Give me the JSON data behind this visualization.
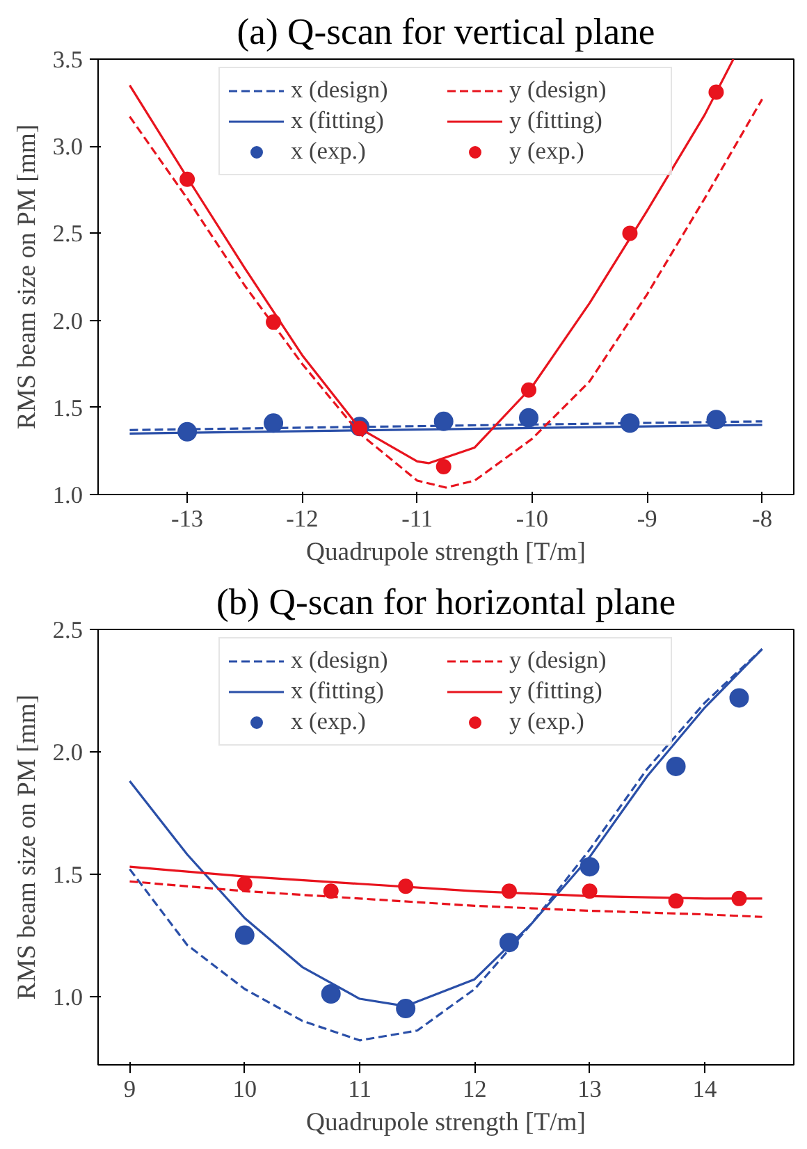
{
  "chart_data": [
    {
      "type": "line",
      "title": "(a) Q-scan for vertical plane",
      "xlabel": "Quadrupole strength [T/m]",
      "ylabel": "RMS beam size on PM [mm]",
      "xlim": [
        -13.775,
        -7.725
      ],
      "ylim": [
        1.0,
        3.5
      ],
      "xticks": [
        -13,
        -12,
        -11,
        -10,
        -9,
        -8
      ],
      "yticks": [
        {
          "value": 1,
          "label": "1.0"
        },
        1.5,
        {
          "value": 2,
          "label": "2.0"
        },
        2.5,
        {
          "value": 3,
          "label": "3.0"
        },
        3.5
      ],
      "grid": false,
      "legend": "top",
      "series": [
        {
          "name": "x (design)",
          "line_style": "dashed",
          "color": "#2a4fa8",
          "x": [
            -13.5,
            -8
          ],
          "values": [
            1.37,
            1.42
          ]
        },
        {
          "name": "x (fitting)",
          "line_style": "solid",
          "color": "#2a4fa8",
          "x": [
            -13.5,
            -8
          ],
          "values": [
            1.35,
            1.4
          ]
        },
        {
          "name": "x (exp.)",
          "type": "scatter",
          "marker": "circle",
          "color": "#2a4fa8",
          "x": [
            -13,
            -12.25,
            -11.5,
            -10.77,
            -10.03,
            -9.15,
            -8.4
          ],
          "values": [
            1.36,
            1.41,
            1.39,
            1.42,
            1.44,
            1.41,
            1.43
          ]
        },
        {
          "name": "y (design)",
          "line_style": "dashed",
          "color": "#e8141e",
          "x": [
            -13.5,
            -13,
            -12.5,
            -12,
            -11.5,
            -11,
            -10.75,
            -10.5,
            -10,
            -9.5,
            -9,
            -8.5,
            -8
          ],
          "values": [
            3.17,
            2.7,
            2.2,
            1.75,
            1.35,
            1.08,
            1.04,
            1.08,
            1.32,
            1.65,
            2.15,
            2.7,
            3.27
          ]
        },
        {
          "name": "y (fitting)",
          "line_style": "solid",
          "color": "#e8141e",
          "x": [
            -13.5,
            -13,
            -12.5,
            -12,
            -11.5,
            -11,
            -10.9,
            -10.5,
            -10,
            -9.5,
            -9,
            -8.5,
            -8.25
          ],
          "values": [
            3.35,
            2.82,
            2.3,
            1.8,
            1.38,
            1.19,
            1.18,
            1.27,
            1.62,
            2.1,
            2.63,
            3.18,
            3.5
          ]
        },
        {
          "name": "y (exp.)",
          "type": "scatter",
          "marker": "circle",
          "color": "#e8141e",
          "x": [
            -13,
            -12.25,
            -11.5,
            -10.77,
            -10.03,
            -9.15,
            -8.4
          ],
          "values": [
            2.81,
            1.99,
            1.38,
            1.16,
            1.6,
            2.5,
            3.31
          ]
        }
      ]
    },
    {
      "type": "line",
      "title": "(b) Q-scan for horizontal plane",
      "xlabel": "Quadrupole strength [T/m]",
      "ylabel": "RMS beam size on PM [mm]",
      "xlim": [
        8.725,
        14.775
      ],
      "ylim": [
        0.72,
        2.5
      ],
      "xticks": [
        9,
        10,
        11,
        12,
        13,
        14
      ],
      "yticks": [
        {
          "value": 1,
          "label": "1.0"
        },
        1.5,
        {
          "value": 2,
          "label": "2.0"
        },
        2.5
      ],
      "grid": false,
      "legend": "top",
      "series": [
        {
          "name": "x (design)",
          "line_style": "dashed",
          "color": "#2a4fa8",
          "x": [
            9,
            9.5,
            10,
            10.5,
            11,
            11.5,
            12,
            12.5,
            13,
            13.5,
            14,
            14.5
          ],
          "values": [
            1.52,
            1.21,
            1.03,
            0.9,
            0.82,
            0.86,
            1.03,
            1.3,
            1.6,
            1.93,
            2.2,
            2.42
          ]
        },
        {
          "name": "x (fitting)",
          "line_style": "solid",
          "color": "#2a4fa8",
          "x": [
            9,
            9.5,
            10,
            10.5,
            11,
            11.4,
            12,
            12.5,
            13,
            13.5,
            14,
            14.5
          ],
          "values": [
            1.88,
            1.58,
            1.32,
            1.12,
            0.99,
            0.96,
            1.07,
            1.3,
            1.57,
            1.9,
            2.18,
            2.42
          ]
        },
        {
          "name": "x (exp.)",
          "type": "scatter",
          "marker": "circle",
          "color": "#2a4fa8",
          "x": [
            10,
            10.75,
            11.4,
            12.3,
            13,
            13.75,
            14.3
          ],
          "values": [
            1.25,
            1.01,
            0.95,
            1.22,
            1.53,
            1.94,
            2.22
          ]
        },
        {
          "name": "y (design)",
          "line_style": "dashed",
          "color": "#e8141e",
          "x": [
            9,
            10,
            11,
            12,
            13,
            14,
            14.5
          ],
          "values": [
            1.47,
            1.43,
            1.4,
            1.37,
            1.35,
            1.335,
            1.325
          ]
        },
        {
          "name": "y (fitting)",
          "line_style": "solid",
          "color": "#e8141e",
          "x": [
            9,
            10,
            11,
            12,
            13,
            14,
            14.5
          ],
          "values": [
            1.53,
            1.49,
            1.46,
            1.43,
            1.41,
            1.4,
            1.4
          ]
        },
        {
          "name": "y (exp.)",
          "type": "scatter",
          "marker": "circle",
          "color": "#e8141e",
          "x": [
            10,
            10.75,
            11.4,
            12.3,
            13,
            13.75,
            14.3
          ],
          "values": [
            1.46,
            1.43,
            1.45,
            1.43,
            1.43,
            1.39,
            1.4
          ]
        }
      ]
    }
  ]
}
